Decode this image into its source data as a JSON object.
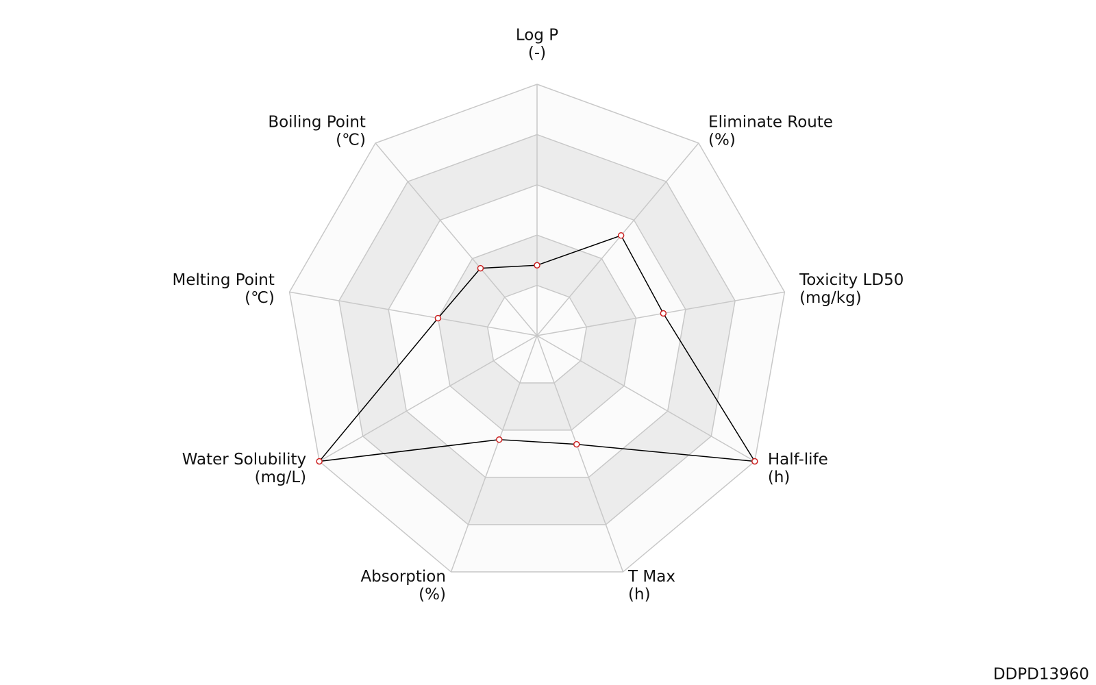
{
  "chart_data": {
    "type": "radar",
    "categories": [
      "Log P",
      "Eliminate Route",
      "Toxicity LD50",
      "Half-life",
      "T Max",
      "Absorption",
      "Water Solubility",
      "Melting Point",
      "Boiling Point"
    ],
    "units": [
      "(-)",
      "(%)",
      "(mg/kg)",
      "(h)",
      "(h)",
      "(%)",
      "(mg/L)",
      "(℃)",
      "(℃)"
    ],
    "values": [
      0.28,
      0.52,
      0.51,
      1.0,
      0.46,
      0.44,
      1.0,
      0.4,
      0.35
    ],
    "rlim": [
      0,
      1
    ],
    "rticks": [
      0.2,
      0.4,
      0.6,
      0.8,
      1.0
    ],
    "color": "#000000",
    "marker_color": "#cc2222",
    "footer": "DDPD13960"
  }
}
